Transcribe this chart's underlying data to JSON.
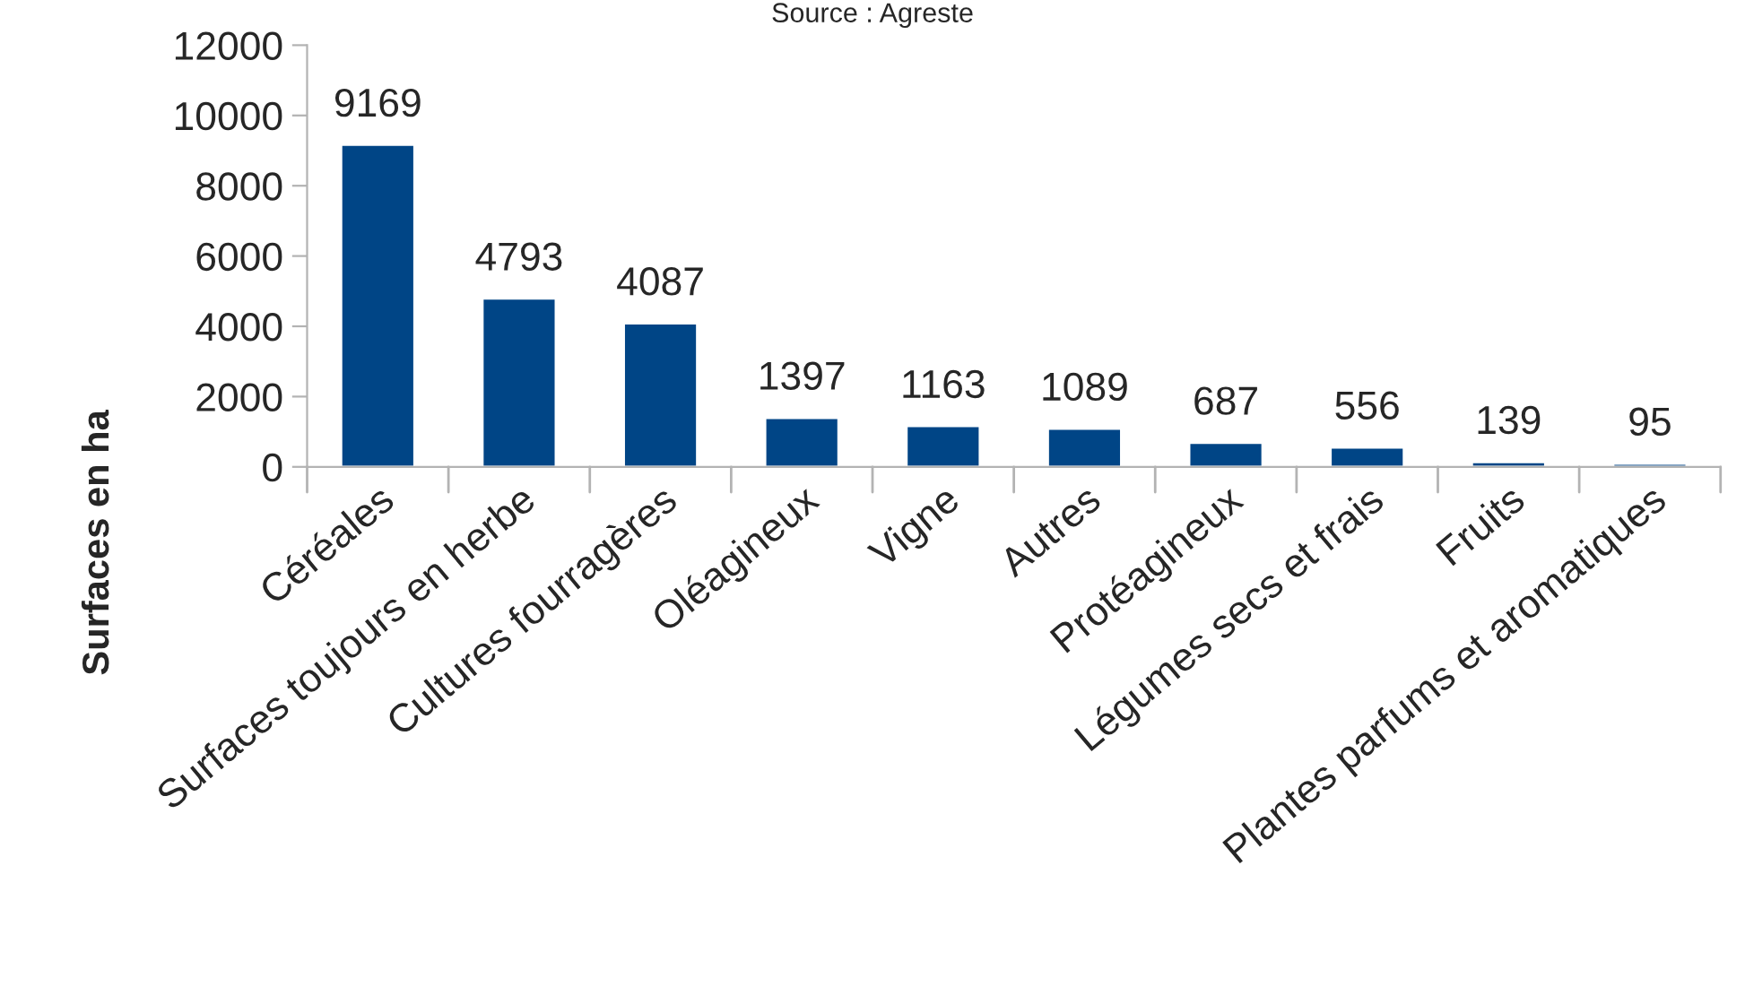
{
  "chart_data": {
    "type": "bar",
    "annotations": [
      "Source : Agreste"
    ],
    "ylabel": "Surfaces en ha",
    "categories": [
      "Céréales",
      "Surfaces toujours en herbe",
      "Cultures fourragères",
      "Oléagineux",
      "Vigne",
      "Autres",
      "Protéagineux",
      "Légumes secs et frais",
      "Fruits",
      "Plantes parfums et aromatiques"
    ],
    "values": [
      9169,
      4793,
      4087,
      1397,
      1163,
      1089,
      687,
      556,
      139,
      95
    ],
    "color": "#004586",
    "ylim": [
      0,
      12000
    ],
    "yticks": [
      0,
      2000,
      4000,
      6000,
      8000,
      10000,
      12000
    ],
    "grid": false,
    "data_labels": true
  }
}
